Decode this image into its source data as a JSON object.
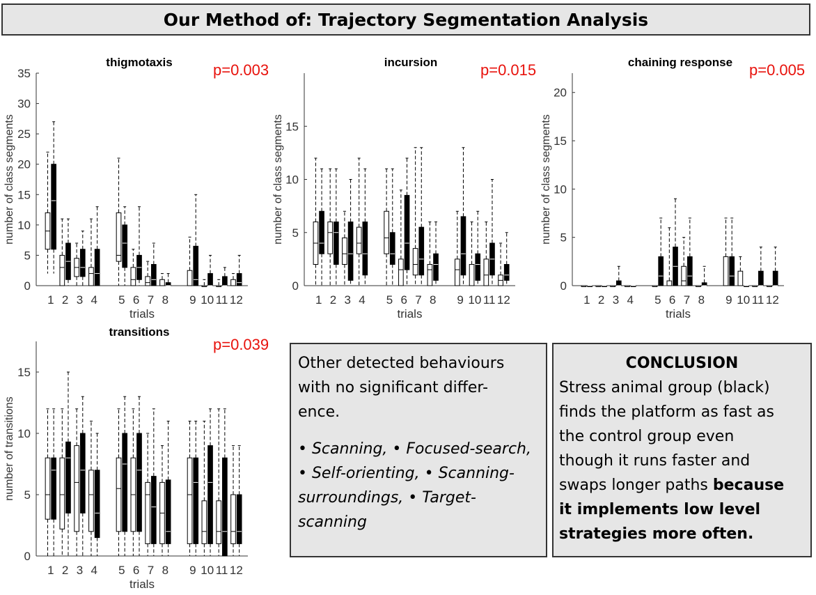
{
  "header": {
    "title": "Our Method of: Trajectory Segmentation Analysis"
  },
  "legend_text": {
    "other_title": "Other detected behaviours with no significant differ- ence.",
    "other_title_lines": [
      "Other detected behaviours",
      "with no significant differ-",
      "ence."
    ],
    "other_items_lines": [
      "• Scanning, • Focused-search,",
      "• Self-orienting, • Scanning-",
      "surroundings, • Target-",
      "scanning"
    ],
    "conclusion_head": "CONCLUSION",
    "conclusion_lines": [
      "Stress animal group (black)",
      "finds the platform as fast as",
      "the control group even",
      "though it runs faster and",
      "swaps longer paths "
    ],
    "conclusion_bold_lines": [
      "because",
      "it implements low level",
      "strategies more often."
    ]
  },
  "chart_data": [
    {
      "type": "box",
      "title": "thigmotaxis",
      "pvalue": "p=0.003",
      "xlabel": "trials",
      "ylabel": "number of class segments",
      "ylim": [
        0,
        35
      ],
      "yticks": [
        0,
        5,
        10,
        15,
        20,
        25,
        30,
        35
      ],
      "trials": [
        "1",
        "2",
        "3",
        "4",
        "5",
        "6",
        "7",
        "8",
        "9",
        "10",
        "11",
        "12"
      ],
      "series": [
        {
          "name": "control",
          "color": "#ffffff",
          "boxes": [
            [
              2,
              6,
              9,
              12,
              22
            ],
            [
              0,
              0,
              3,
              5,
              11
            ],
            [
              0,
              1.5,
              3,
              4.5,
              7
            ],
            [
              0,
              0,
              2,
              3,
              11
            ],
            [
              0,
              4,
              5,
              12,
              21
            ],
            [
              0,
              0,
              1,
              3,
              6
            ],
            [
              0,
              0,
              0.5,
              1.5,
              4
            ],
            [
              0,
              0,
              0,
              1,
              2
            ],
            [
              0,
              0,
              0,
              2.5,
              8
            ],
            [
              0,
              0,
              0,
              0,
              1
            ],
            [
              0,
              0,
              0,
              0,
              1
            ],
            [
              0,
              0,
              0,
              1,
              2
            ]
          ]
        },
        {
          "name": "stress",
          "color": "#000000",
          "boxes": [
            [
              2,
              6,
              14,
              20,
              27
            ],
            [
              0,
              1,
              4,
              7,
              11
            ],
            [
              0,
              1.5,
              3,
              6,
              9
            ],
            [
              0,
              0,
              2,
              6,
              13
            ],
            [
              0,
              3,
              7,
              10,
              13
            ],
            [
              0,
              1,
              3,
              5,
              13
            ],
            [
              0,
              0,
              1,
              3.5,
              7
            ],
            [
              0,
              0,
              0,
              0.5,
              2
            ],
            [
              0,
              0,
              1,
              6.5,
              15
            ],
            [
              0,
              0,
              0,
              2,
              5
            ],
            [
              0,
              0,
              0,
              1.5,
              3
            ],
            [
              0,
              0,
              0.5,
              2,
              5
            ]
          ]
        }
      ]
    },
    {
      "type": "box",
      "title": "incursion",
      "pvalue": "p=0.015",
      "xlabel": "trials",
      "ylabel": "number of class segments",
      "ylim": [
        0,
        20
      ],
      "yticks": [
        0,
        5,
        10,
        15
      ],
      "trials": [
        "1",
        "2",
        "3",
        "4",
        "5",
        "6",
        "7",
        "8",
        "9",
        "10",
        "11",
        "12"
      ],
      "series": [
        {
          "name": "control",
          "color": "#ffffff",
          "boxes": [
            [
              0,
              2,
              4,
              6,
              12
            ],
            [
              0,
              3,
              5,
              6,
              11
            ],
            [
              0,
              2,
              3,
              4.5,
              7
            ],
            [
              0,
              3,
              4,
              5.5,
              12
            ],
            [
              0,
              3,
              4.5,
              7,
              11
            ],
            [
              0,
              0,
              1.5,
              2.5,
              9
            ],
            [
              0,
              1,
              2,
              3.5,
              13
            ],
            [
              0,
              0,
              1.5,
              2,
              6
            ],
            [
              0,
              0,
              1.5,
              2.5,
              7
            ],
            [
              0,
              0,
              2,
              2,
              6
            ],
            [
              0,
              0,
              1,
              2.5,
              6
            ],
            [
              0,
              0,
              0.5,
              1,
              4
            ]
          ]
        },
        {
          "name": "stress",
          "color": "#000000",
          "boxes": [
            [
              0,
              3,
              4,
              7,
              11
            ],
            [
              0,
              2,
              5,
              6,
              11
            ],
            [
              0,
              0.5,
              3,
              6,
              10
            ],
            [
              0,
              1,
              3,
              6,
              11
            ],
            [
              0,
              2,
              3,
              5,
              11
            ],
            [
              0,
              1.5,
              4,
              8.5,
              12
            ],
            [
              0,
              1,
              2.5,
              5.5,
              13
            ],
            [
              0,
              0.5,
              2,
              3,
              6
            ],
            [
              0,
              1,
              3,
              6.5,
              13
            ],
            [
              0,
              0.5,
              2,
              3,
              7
            ],
            [
              0,
              1,
              2.5,
              4,
              10
            ],
            [
              0,
              0.5,
              1,
              2,
              5
            ]
          ]
        }
      ]
    },
    {
      "type": "box",
      "title": "chaining response",
      "pvalue": "p=0.005",
      "xlabel": "trials",
      "ylabel": "number of class segments",
      "ylim": [
        0,
        22
      ],
      "yticks": [
        0,
        5,
        10,
        15,
        20
      ],
      "trials": [
        "1",
        "2",
        "3",
        "4",
        "5",
        "6",
        "7",
        "8",
        "9",
        "10",
        "11",
        "12"
      ],
      "series": [
        {
          "name": "control",
          "color": "#ffffff",
          "boxes": [
            [
              0,
              0,
              0,
              0,
              0
            ],
            [
              0,
              0,
              0,
              0,
              0
            ],
            [
              0,
              0,
              0,
              0,
              0
            ],
            [
              0,
              0,
              0,
              0,
              0
            ],
            [
              0,
              0,
              0,
              0,
              0
            ],
            [
              0,
              0,
              0,
              0.5,
              6
            ],
            [
              0,
              0,
              0.5,
              2,
              5
            ],
            [
              0,
              0,
              0,
              0,
              0
            ],
            [
              0,
              0,
              0,
              3,
              7
            ],
            [
              0,
              0,
              0,
              1.5,
              3
            ],
            [
              0,
              0,
              0,
              0,
              0
            ],
            [
              0,
              0,
              0,
              0,
              0
            ]
          ]
        },
        {
          "name": "stress",
          "color": "#000000",
          "boxes": [
            [
              0,
              0,
              0,
              0,
              0
            ],
            [
              0,
              0,
              0,
              0,
              0
            ],
            [
              0,
              0,
              0,
              0.5,
              2
            ],
            [
              0,
              0,
              0,
              0,
              0
            ],
            [
              0,
              0,
              1,
              3,
              7
            ],
            [
              0,
              0,
              2,
              4,
              9
            ],
            [
              0,
              0,
              1,
              3,
              7
            ],
            [
              0,
              0,
              0,
              0.3,
              2
            ],
            [
              0,
              0,
              1,
              3,
              7
            ],
            [
              0,
              0,
              0,
              0,
              0
            ],
            [
              0,
              0,
              0,
              1.5,
              4
            ],
            [
              0,
              0,
              0,
              1.5,
              4
            ]
          ]
        }
      ]
    },
    {
      "type": "box",
      "title": "transitions",
      "pvalue": "p=0.039",
      "xlabel": "trials",
      "ylabel": "number of transitions",
      "ylim": [
        0,
        17.5
      ],
      "yticks": [
        0,
        5,
        10,
        15
      ],
      "trials": [
        "1",
        "2",
        "3",
        "4",
        "5",
        "6",
        "7",
        "8",
        "9",
        "10",
        "11",
        "12"
      ],
      "series": [
        {
          "name": "control",
          "color": "#ffffff",
          "boxes": [
            [
              0,
              3,
              5,
              8,
              12
            ],
            [
              0,
              2.2,
              5,
              8,
              12
            ],
            [
              0,
              2,
              6,
              9,
              12
            ],
            [
              0,
              2,
              5,
              7,
              11
            ],
            [
              0,
              2,
              5.5,
              8,
              12
            ],
            [
              0,
              2,
              5,
              8,
              12
            ],
            [
              0,
              1,
              5,
              6,
              10
            ],
            [
              0,
              1,
              3.5,
              6,
              9
            ],
            [
              0,
              1,
              5,
              8,
              11
            ],
            [
              0,
              1,
              2,
              4.5,
              11
            ],
            [
              0,
              1,
              2,
              4.5,
              12
            ],
            [
              0,
              1,
              2,
              5,
              9
            ]
          ]
        },
        {
          "name": "stress",
          "color": "#000000",
          "boxes": [
            [
              0,
              3,
              7,
              8,
              12
            ],
            [
              0,
              3.5,
              8,
              9.3,
              15
            ],
            [
              0,
              3.5,
              7,
              10,
              13
            ],
            [
              0,
              1.5,
              3.5,
              7,
              10
            ],
            [
              0,
              2,
              7.5,
              10,
              13
            ],
            [
              0,
              2,
              7,
              10,
              13
            ],
            [
              0,
              1,
              4,
              6.5,
              12
            ],
            [
              0,
              1,
              2,
              6.2,
              11
            ],
            [
              0,
              1,
              6,
              8,
              11
            ],
            [
              0,
              1,
              6,
              9,
              12
            ],
            [
              0,
              0,
              2,
              8,
              12
            ],
            [
              0,
              1,
              2,
              5,
              9
            ]
          ]
        }
      ]
    }
  ]
}
